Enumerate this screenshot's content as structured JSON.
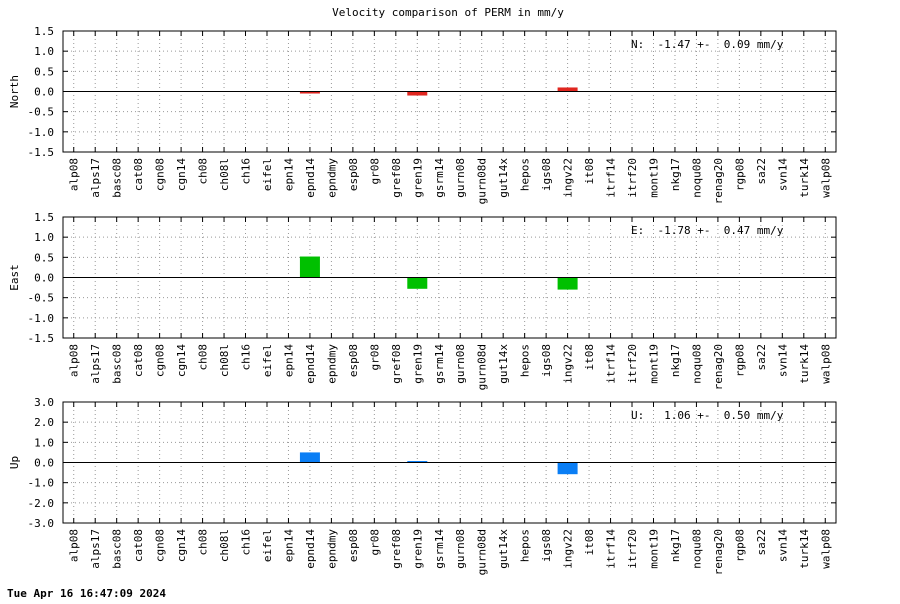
{
  "title": "Velocity comparison of PERM in mm/y",
  "footer": "Tue Apr 16 16:47:09 2024",
  "categories": [
    "alp08",
    "alps17",
    "basc08",
    "cat08",
    "cgn08",
    "cgn14",
    "ch08",
    "ch08l",
    "ch16",
    "eifel",
    "epn14",
    "epnd14",
    "epndmy",
    "esp08",
    "gr08",
    "gref08",
    "gren19",
    "gsrm14",
    "gurn08",
    "gurn08d",
    "gut14x",
    "hepos",
    "igs08",
    "ingv22",
    "it08",
    "itrf14",
    "itrf20",
    "mont19",
    "nkg17",
    "noqu08",
    "renag20",
    "rgp08",
    "sa22",
    "svn14",
    "turk14",
    "walp08"
  ],
  "chart_data": [
    {
      "type": "bar",
      "ylabel": "North",
      "ylim": [
        -1.5,
        1.5
      ],
      "yticks": [
        "1.5",
        "1.0",
        "0.5",
        "0.0",
        "-0.5",
        "-1.0",
        "-1.5"
      ],
      "grid": true,
      "color": "#e0261f",
      "annotation": "N:  -1.47 +-  0.09 mm/y",
      "values": [
        {
          "category": "epnd14",
          "value": -0.05
        },
        {
          "category": "gren19",
          "value": -0.1
        },
        {
          "category": "ingv22",
          "value": 0.1
        }
      ]
    },
    {
      "type": "bar",
      "ylabel": "East",
      "ylim": [
        -1.5,
        1.5
      ],
      "yticks": [
        "1.5",
        "1.0",
        "0.5",
        "0.0",
        "-0.5",
        "-1.0",
        "-1.5"
      ],
      "grid": true,
      "color": "#00c000",
      "annotation": "E:  -1.78 +-  0.47 mm/y",
      "values": [
        {
          "category": "epnd14",
          "value": 0.52
        },
        {
          "category": "gren19",
          "value": -0.28
        },
        {
          "category": "ingv22",
          "value": -0.3
        }
      ]
    },
    {
      "type": "bar",
      "ylabel": "Up",
      "ylim": [
        -3.0,
        3.0
      ],
      "yticks": [
        "3.0",
        "2.0",
        "1.0",
        "0.0",
        "-1.0",
        "-2.0",
        "-3.0"
      ],
      "grid": true,
      "color": "#0a7ef5",
      "annotation": "U:   1.06 +-  0.50 mm/y",
      "values": [
        {
          "category": "epnd14",
          "value": 0.5
        },
        {
          "category": "gren19",
          "value": 0.05
        },
        {
          "category": "ingv22",
          "value": -0.58
        }
      ]
    }
  ]
}
